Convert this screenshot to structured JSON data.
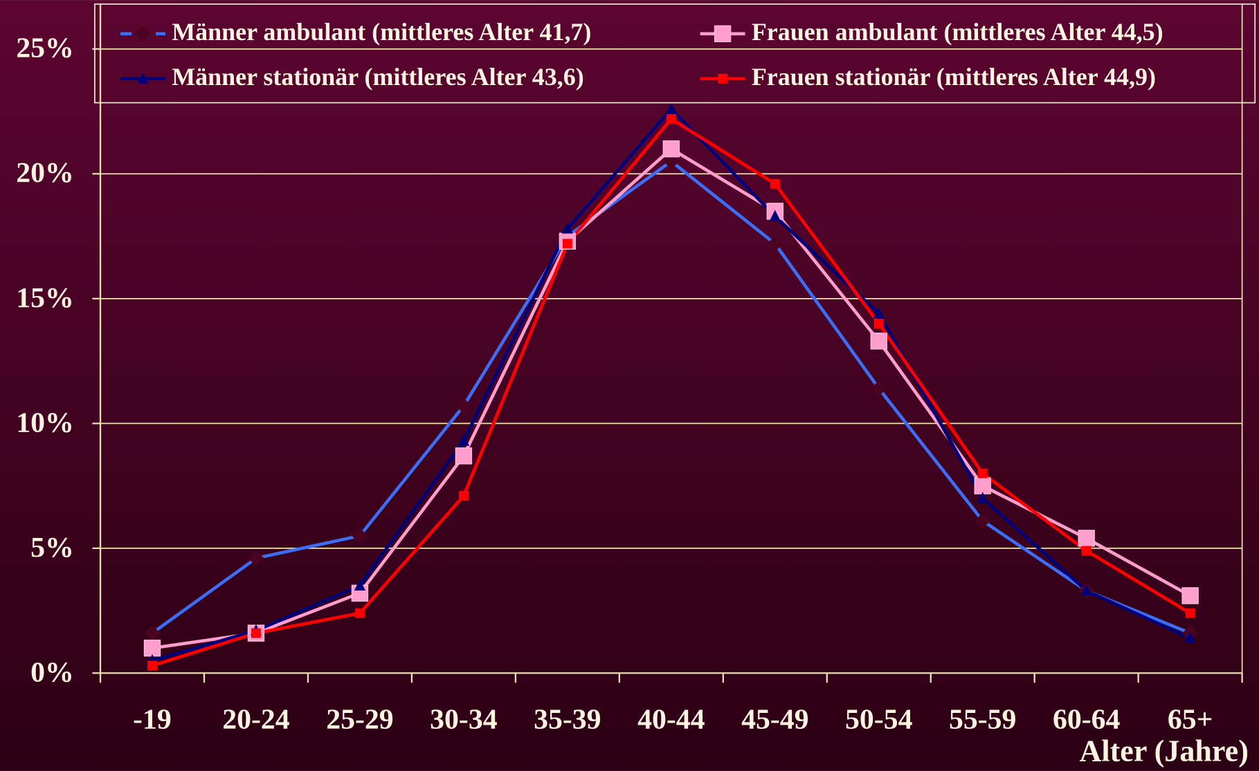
{
  "chart_data": {
    "type": "line",
    "x_label": "Alter (Jahre)",
    "categories": [
      "-19",
      "20-24",
      "25-29",
      "30-34",
      "35-39",
      "40-44",
      "45-49",
      "50-54",
      "55-59",
      "60-64",
      "65+"
    ],
    "series": [
      {
        "name": "Männer ambulant (mittleres Alter 41,7)",
        "color": "#3b6ef5",
        "marker": "diamond",
        "marker_color": "#4a0422",
        "values": [
          1.6,
          4.6,
          5.5,
          10.7,
          17.5,
          20.5,
          17.2,
          11.4,
          6.1,
          3.3,
          1.6
        ]
      },
      {
        "name": "Frauen ambulant (mittleres Alter 44,5)",
        "color": "#ff9dcd",
        "marker": "square",
        "marker_color": "#ff9dcd",
        "values": [
          1.0,
          1.6,
          3.2,
          8.7,
          17.3,
          21.0,
          18.5,
          13.3,
          7.5,
          5.4,
          3.1
        ]
      },
      {
        "name": "Männer stationär (mittleres Alter 43,6)",
        "color": "#00007a",
        "marker": "triangle",
        "marker_color": "#00007a",
        "values": [
          0.5,
          1.7,
          3.5,
          9.3,
          17.8,
          22.6,
          18.3,
          14.4,
          7.0,
          3.3,
          1.4
        ]
      },
      {
        "name": "Frauen stationär (mittleres Alter 44,9)",
        "color": "#ff0000",
        "marker": "square-small",
        "marker_color": "#ff0000",
        "values": [
          0.3,
          1.6,
          2.4,
          7.1,
          17.2,
          22.2,
          19.6,
          14.0,
          8.0,
          4.9,
          2.4
        ]
      }
    ],
    "ylim": [
      0,
      25
    ],
    "yticks": [
      {
        "value": 0,
        "label": "0%"
      },
      {
        "value": 5,
        "label": "5%"
      },
      {
        "value": 10,
        "label": "10%"
      },
      {
        "value": 15,
        "label": "15%"
      },
      {
        "value": 20,
        "label": "20%"
      },
      {
        "value": 25,
        "label": "25%"
      }
    ],
    "grid": true,
    "legend": "top"
  }
}
